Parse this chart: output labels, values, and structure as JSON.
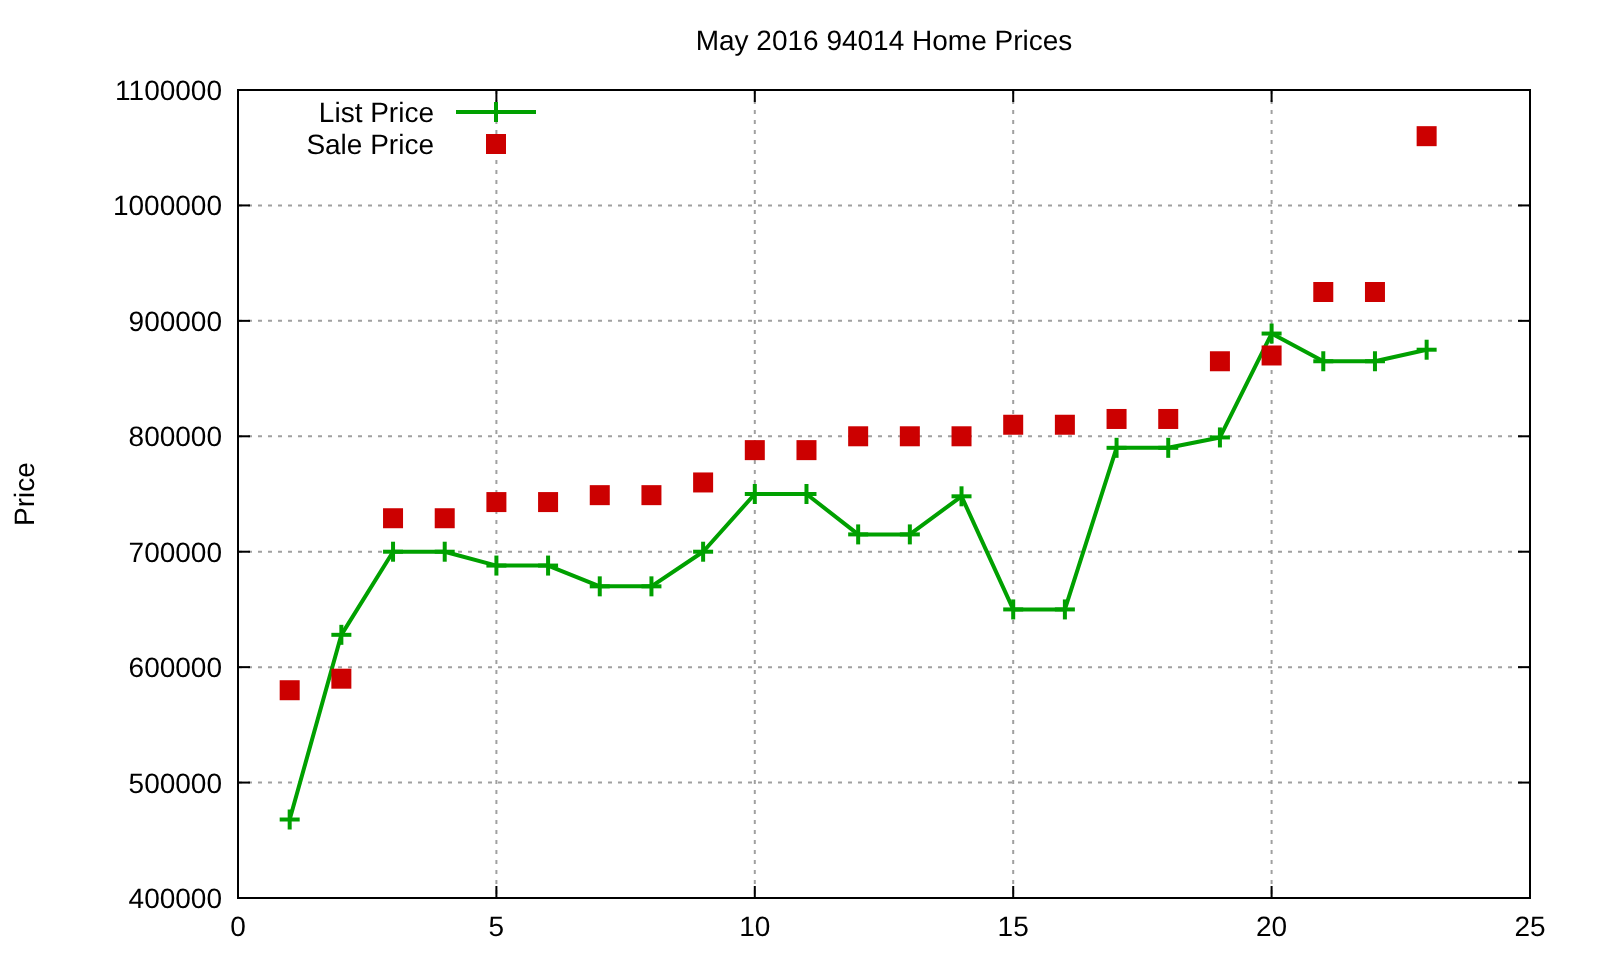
{
  "chart_data": {
    "type": "line",
    "title": "May 2016 94014 Home Prices",
    "ylabel": "Price",
    "x": [
      1,
      2,
      3,
      4,
      5,
      6,
      7,
      8,
      9,
      10,
      11,
      12,
      13,
      14,
      15,
      16,
      17,
      18,
      19,
      20,
      21,
      22,
      23
    ],
    "series": [
      {
        "name": "List Price",
        "color": "#00a000",
        "marker": "cross",
        "values": [
          468000,
          628000,
          700000,
          700000,
          688000,
          688000,
          670000,
          670000,
          700000,
          750000,
          750000,
          715000,
          715000,
          748000,
          650000,
          650000,
          790000,
          790000,
          799000,
          889000,
          865000,
          865000,
          875000
        ]
      },
      {
        "name": "Sale Price",
        "type": "scatter",
        "color": "#cc0000",
        "marker": "square",
        "values": [
          580000,
          590000,
          729000,
          729000,
          743000,
          743000,
          749000,
          749000,
          760000,
          788000,
          788000,
          800000,
          800000,
          800000,
          810000,
          810000,
          815000,
          815000,
          865000,
          870000,
          925000,
          925000,
          1060000
        ]
      }
    ],
    "xlim": [
      0,
      25
    ],
    "xticks": [
      0,
      5,
      10,
      15,
      20,
      25
    ],
    "ylim": [
      400000,
      1100000
    ],
    "yticks": [
      400000,
      500000,
      600000,
      700000,
      800000,
      900000,
      1000000,
      1100000
    ],
    "grid": true,
    "legend": "top left"
  }
}
